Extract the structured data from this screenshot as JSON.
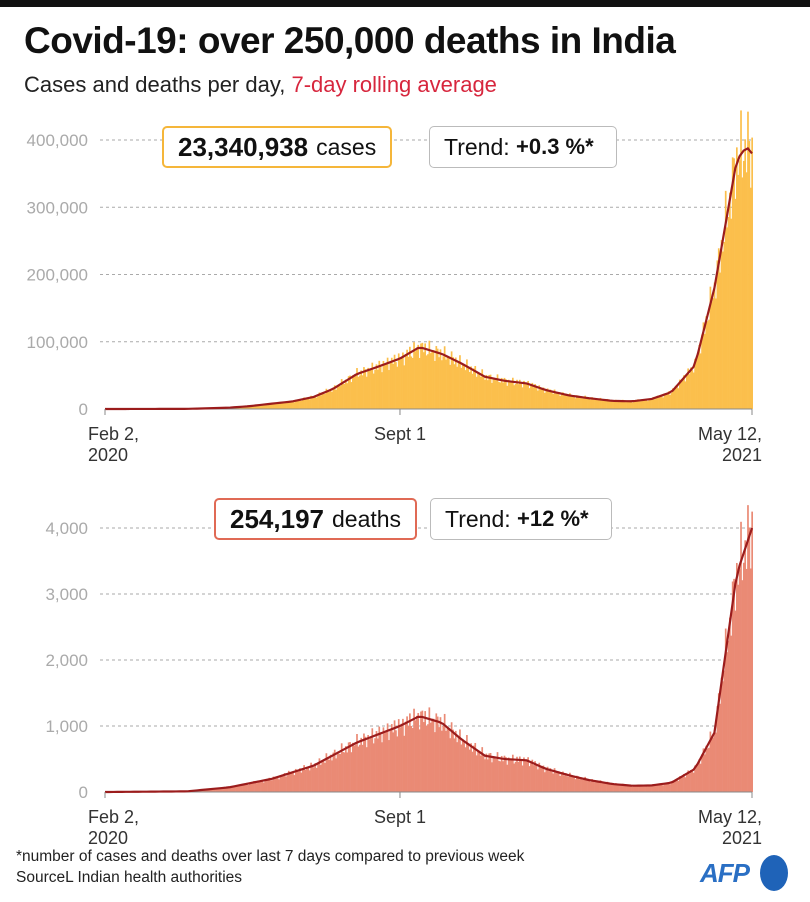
{
  "title": "Covid-19: over 250,000 deaths in India",
  "subtitle_main": "Cases and deaths per day,",
  "subtitle_highlight": "7-day rolling average",
  "cases_box": {
    "value": "23,340,938",
    "unit": "cases",
    "trend_label": "Trend:",
    "trend_value": "+0.3 %*"
  },
  "deaths_box": {
    "value": "254,197",
    "unit": "deaths",
    "trend_label": "Trend:",
    "trend_value": "+12 %*"
  },
  "footnote": "*number of cases and deaths over last 7 days compared to previous week",
  "source": "SourceL Indian health authorities",
  "logo": "AFP",
  "colors": {
    "cases_bar": "#fbbf4c",
    "deaths_bar": "#ea8a75",
    "avg_line": "#9b1c1c",
    "cases_border": "#f5b63a",
    "deaths_border": "#e06a55"
  },
  "chart_data": [
    {
      "type": "bar",
      "title": "Cases per day",
      "x_ticks": [
        {
          "day": 0,
          "label": "Feb 2,",
          "label2": "2020"
        },
        {
          "day": 212,
          "label": "Sept 1",
          "label2": ""
        },
        {
          "day": 465,
          "label": "May 12,",
          "label2": "2021"
        }
      ],
      "y_ticks": [
        {
          "v": 0,
          "label": "0"
        },
        {
          "v": 100000,
          "label": "100,000"
        },
        {
          "v": 200000,
          "label": "200,000"
        },
        {
          "v": 300000,
          "label": "300,000"
        },
        {
          "v": 400000,
          "label": "400,000"
        }
      ],
      "ylim": [
        0,
        400000
      ],
      "days": [
        0,
        59,
        73,
        89,
        103,
        120,
        134,
        150,
        164,
        181,
        195,
        212,
        226,
        242,
        256,
        273,
        287,
        303,
        317,
        334,
        348,
        365,
        379,
        393,
        407,
        424,
        438,
        454,
        461,
        465
      ],
      "rolling_avg": [
        0,
        200,
        1000,
        2000,
        4000,
        8000,
        11000,
        18000,
        30000,
        52000,
        62000,
        75000,
        92000,
        82000,
        68000,
        48000,
        42000,
        38000,
        28000,
        20000,
        16000,
        12000,
        11500,
        15000,
        25000,
        65000,
        180000,
        370000,
        390000,
        380000
      ]
    },
    {
      "type": "bar",
      "title": "Deaths per day",
      "x_ticks": [
        {
          "day": 0,
          "label": "Feb 2,",
          "label2": "2020"
        },
        {
          "day": 212,
          "label": "Sept 1",
          "label2": ""
        },
        {
          "day": 465,
          "label": "May 12,",
          "label2": "2021"
        }
      ],
      "y_ticks": [
        {
          "v": 0,
          "label": "0"
        },
        {
          "v": 1000,
          "label": "1,000"
        },
        {
          "v": 2000,
          "label": "2,000"
        },
        {
          "v": 3000,
          "label": "3,000"
        },
        {
          "v": 4000,
          "label": "4,000"
        }
      ],
      "ylim": [
        0,
        4000
      ],
      "days": [
        0,
        59,
        89,
        120,
        150,
        181,
        212,
        226,
        242,
        256,
        273,
        287,
        303,
        317,
        334,
        348,
        365,
        379,
        393,
        407,
        424,
        438,
        454,
        465
      ],
      "rolling_avg": [
        0,
        10,
        70,
        200,
        400,
        750,
        1000,
        1150,
        1050,
        800,
        550,
        500,
        480,
        350,
        250,
        180,
        120,
        95,
        100,
        140,
        350,
        900,
        3300,
        4000
      ]
    }
  ]
}
